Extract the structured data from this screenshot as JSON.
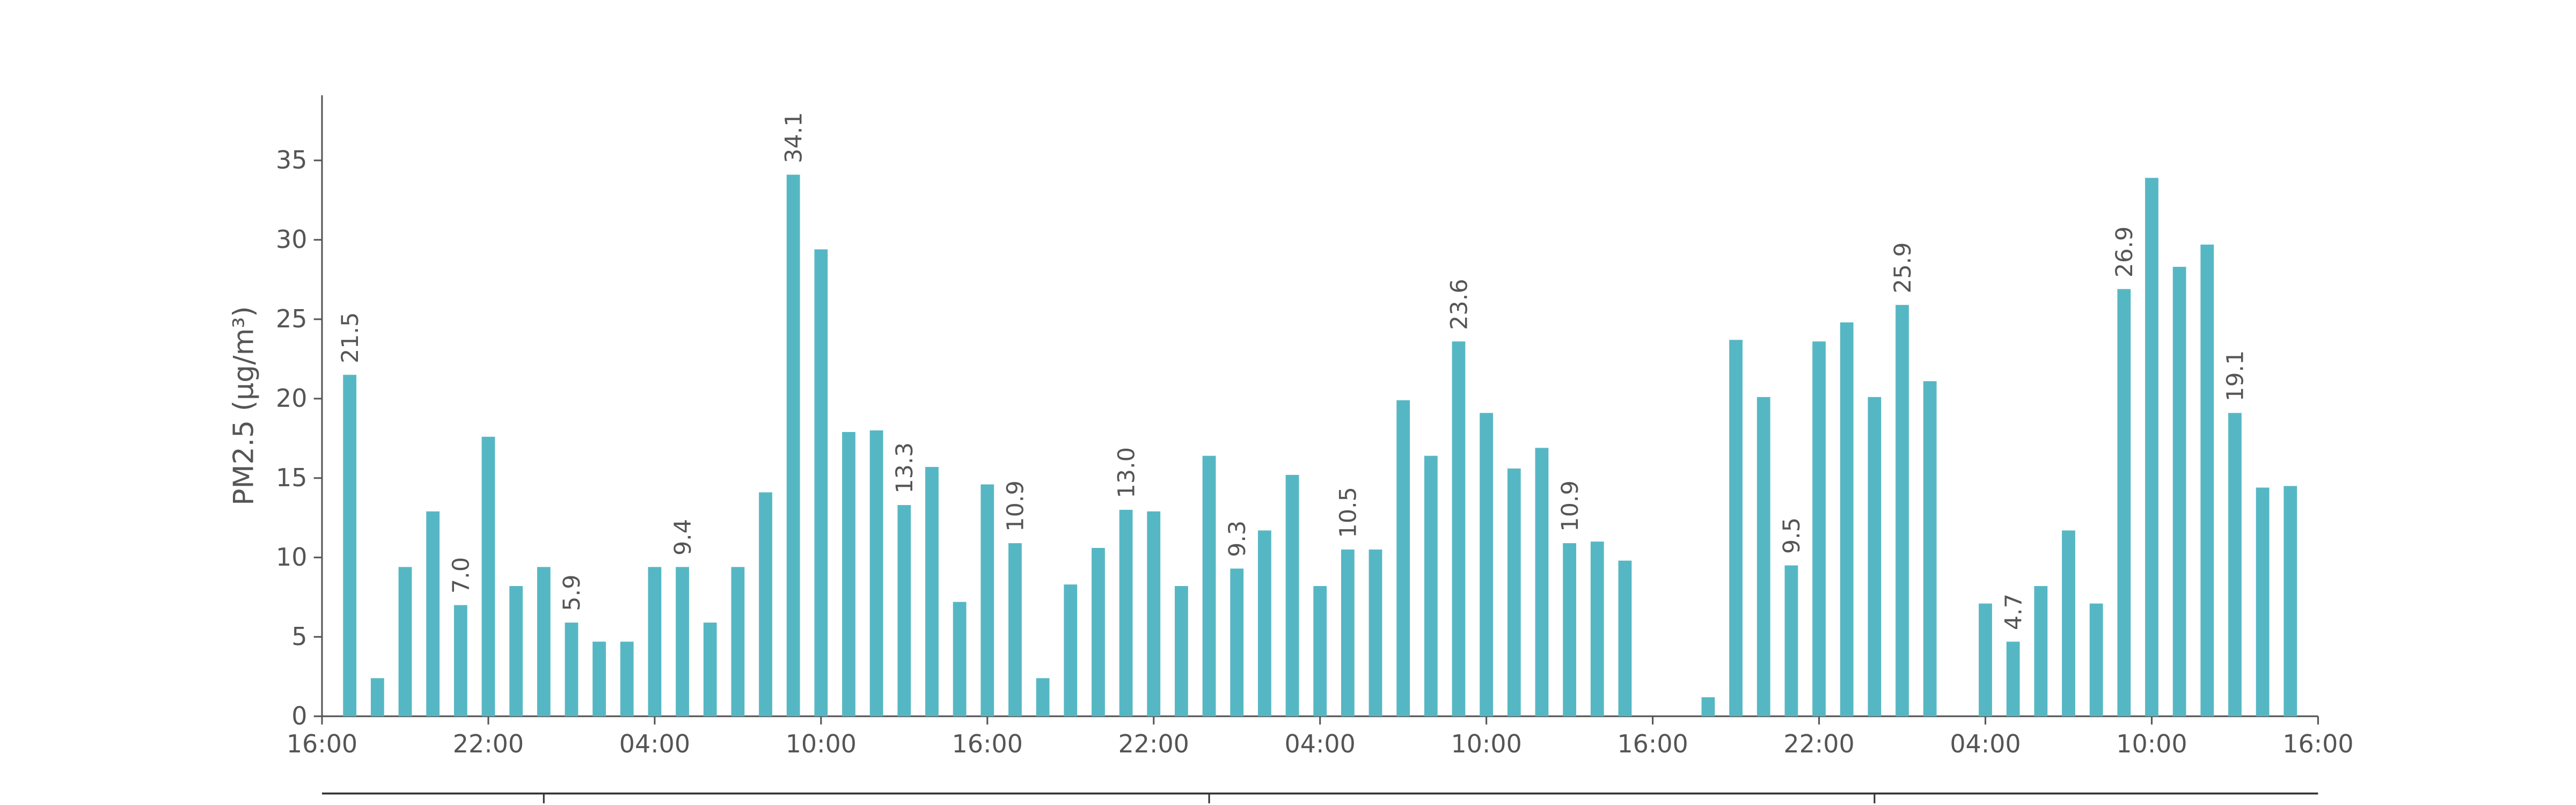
{
  "chart_data": {
    "type": "bar",
    "y_label": "PM2.5 (μg/m³)",
    "color": "#56b7c4",
    "x": [
      1,
      2,
      3,
      4,
      5,
      6,
      7,
      8,
      9,
      10,
      11,
      12,
      13,
      14,
      15,
      16,
      17,
      18,
      19,
      20,
      21,
      22,
      23,
      24,
      25,
      26,
      27,
      28,
      29,
      30,
      31,
      32,
      33,
      34,
      35,
      36,
      37,
      38,
      39,
      40,
      41,
      42,
      43,
      44,
      45,
      46,
      47,
      48,
      49,
      50,
      51,
      52,
      53,
      54,
      55,
      56,
      57,
      58,
      59,
      60,
      61,
      62,
      63,
      64,
      65,
      66,
      67,
      68,
      69,
      70,
      71
    ],
    "values": [
      21.5,
      2.4,
      9.4,
      12.9,
      7.0,
      17.6,
      8.2,
      9.4,
      5.9,
      4.7,
      4.7,
      9.4,
      9.4,
      5.9,
      9.4,
      14.1,
      34.1,
      29.4,
      17.9,
      18.0,
      13.3,
      15.7,
      7.2,
      14.6,
      10.9,
      2.4,
      8.3,
      10.6,
      13.0,
      12.9,
      8.2,
      16.4,
      9.3,
      11.7,
      15.2,
      8.2,
      10.5,
      10.5,
      19.9,
      16.4,
      23.6,
      19.1,
      15.6,
      16.9,
      10.9,
      11.0,
      9.8,
      null,
      null,
      1.2,
      23.7,
      20.1,
      9.5,
      23.6,
      24.8,
      20.1,
      25.9,
      21.1,
      null,
      7.1,
      4.7,
      8.2,
      11.7,
      7.1,
      26.9,
      33.9,
      28.3,
      29.7,
      19.1,
      14.4,
      14.5
    ],
    "value_labels": [
      "21.5",
      null,
      null,
      null,
      "7.0",
      null,
      null,
      null,
      "5.9",
      null,
      null,
      null,
      "9.4",
      null,
      null,
      null,
      "34.1",
      null,
      null,
      null,
      "13.3",
      null,
      null,
      null,
      "10.9",
      null,
      null,
      null,
      "13.0",
      null,
      null,
      null,
      "9.3",
      null,
      null,
      null,
      "10.5",
      null,
      null,
      null,
      "23.6",
      null,
      null,
      null,
      "10.9",
      null,
      null,
      null,
      null,
      null,
      null,
      null,
      "9.5",
      null,
      null,
      null,
      "25.9",
      null,
      null,
      null,
      "4.7",
      null,
      null,
      null,
      "26.9",
      null,
      null,
      null,
      "19.1",
      null,
      null
    ],
    "xlim": [
      0,
      72
    ],
    "xticks": [
      {
        "value": 0,
        "label": "16:00"
      },
      {
        "value": 6,
        "label": "22:00"
      },
      {
        "value": 12,
        "label": "04:00"
      },
      {
        "value": 18,
        "label": "10:00"
      },
      {
        "value": 24,
        "label": "16:00"
      },
      {
        "value": 30,
        "label": "22:00"
      },
      {
        "value": 36,
        "label": "04:00"
      },
      {
        "value": 42,
        "label": "10:00"
      },
      {
        "value": 48,
        "label": "16:00"
      },
      {
        "value": 54,
        "label": "22:00"
      },
      {
        "value": 60,
        "label": "04:00"
      },
      {
        "value": 66,
        "label": "10:00"
      },
      {
        "value": 72,
        "label": "16:00"
      }
    ],
    "ylim": [
      0,
      39.1
    ],
    "yticks": [
      0,
      5,
      10,
      15,
      20,
      25,
      30,
      35
    ]
  }
}
